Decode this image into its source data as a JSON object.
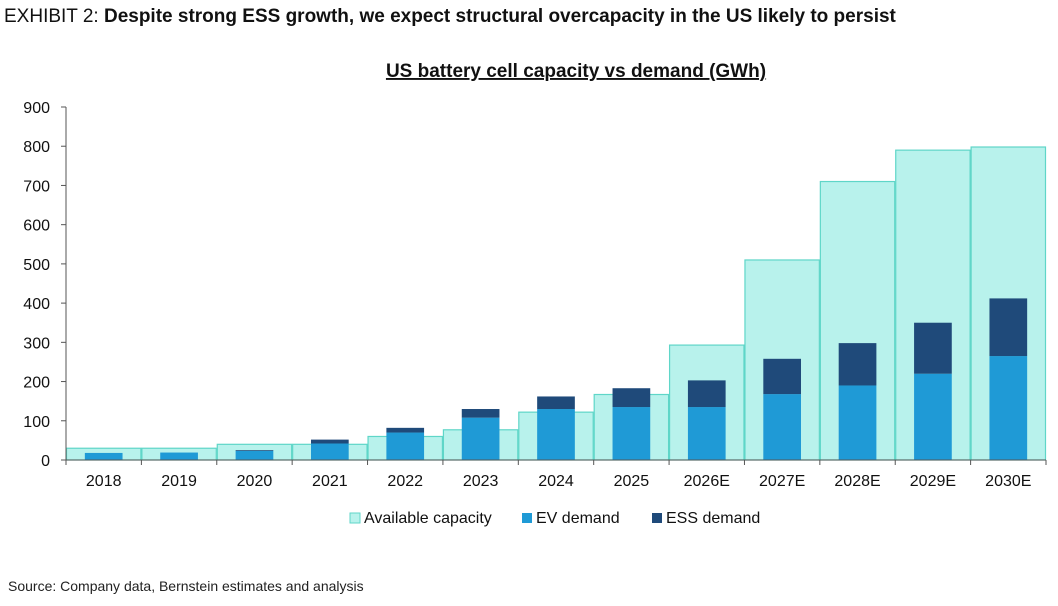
{
  "exhibit": {
    "label": "EXHIBIT 2: ",
    "title": "Despite strong ESS growth, we expect structural overcapacity in the US likely to persist"
  },
  "source": "Source: Company data, Bernstein estimates and analysis",
  "colors": {
    "capacity_fill": "#b8f2ec",
    "capacity_stroke": "#5fd6c8",
    "ev": "#1f9ad6",
    "ess": "#1f4a7a",
    "axis": "#555555",
    "text": "#111111"
  },
  "chart_data": {
    "type": "bar",
    "title": "US battery cell capacity vs demand (GWh)",
    "xlabel": "",
    "ylabel": "",
    "ylim": [
      0,
      900
    ],
    "yticks": [
      0,
      100,
      200,
      300,
      400,
      500,
      600,
      700,
      800,
      900
    ],
    "grid": false,
    "legend_position": "bottom",
    "categories": [
      "2018",
      "2019",
      "2020",
      "2021",
      "2022",
      "2023",
      "2024",
      "2025",
      "2026E",
      "2027E",
      "2028E",
      "2029E",
      "2030E"
    ],
    "series": [
      {
        "name": "Available capacity",
        "values": [
          30,
          30,
          40,
          40,
          60,
          77,
          122,
          167,
          293,
          510,
          710,
          790,
          798
        ]
      },
      {
        "name": "EV demand",
        "values": [
          18,
          19,
          23,
          42,
          70,
          108,
          130,
          135,
          135,
          168,
          190,
          220,
          265
        ]
      },
      {
        "name": "ESS demand",
        "values": [
          0,
          0,
          2,
          10,
          12,
          22,
          32,
          48,
          68,
          90,
          108,
          130,
          147
        ]
      }
    ]
  }
}
